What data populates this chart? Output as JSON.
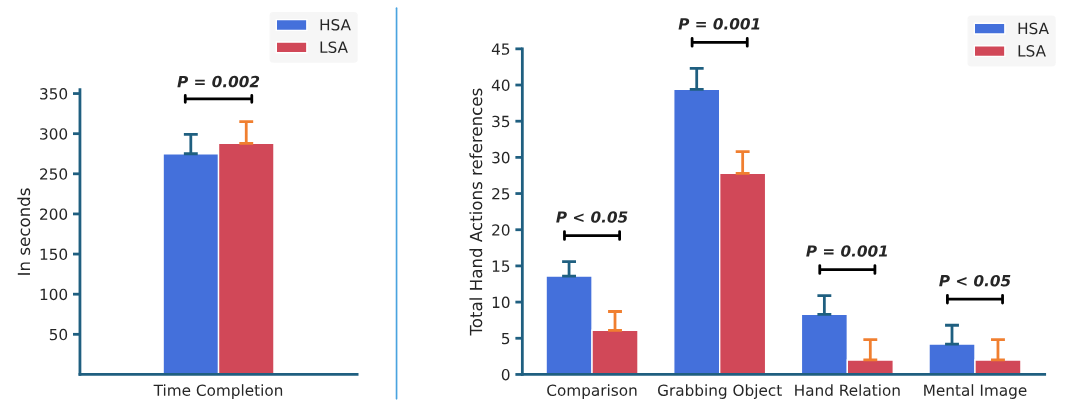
{
  "chart_data": [
    {
      "type": "bar",
      "ylabel": "In seconds",
      "categories": [
        "Time Completion"
      ],
      "ylim": [
        0,
        355
      ],
      "yticks": [
        50,
        100,
        150,
        200,
        250,
        300,
        350
      ],
      "grid": false,
      "legend": "top right",
      "series": [
        {
          "name": "HSA",
          "color": "#4470db",
          "values": [
            275
          ],
          "errors": [
            [
              275,
              299
            ]
          ]
        },
        {
          "name": "LSA",
          "color": "#d14858",
          "values": [
            288
          ],
          "errors": [
            [
              288,
              315
            ]
          ]
        }
      ],
      "annotations": [
        "P = 0.002"
      ]
    },
    {
      "type": "bar",
      "ylabel": "Total Hand Actions references",
      "categories": [
        "Comparison",
        "Grabbing Object",
        "Hand Relation",
        "Mental Image"
      ],
      "ylim": [
        0,
        45
      ],
      "yticks": [
        0,
        5,
        10,
        15,
        20,
        25,
        30,
        35,
        40,
        45
      ],
      "grid": false,
      "legend": "top right",
      "series": [
        {
          "name": "HSA",
          "color": "#4470db",
          "values": [
            13.6,
            39.4,
            8.3,
            4.2
          ],
          "errors": [
            [
              13.6,
              15.6
            ],
            [
              39.4,
              42.3
            ],
            [
              8.3,
              10.9
            ],
            [
              4.2,
              6.8
            ]
          ]
        },
        {
          "name": "LSA",
          "color": "#d14858",
          "values": [
            6.1,
            27.8,
            2.0,
            2.0
          ],
          "errors": [
            [
              6.1,
              8.7
            ],
            [
              27.8,
              30.8
            ],
            [
              2.0,
              4.8
            ],
            [
              2.0,
              4.8
            ]
          ]
        }
      ],
      "annotations": [
        "P < 0.05",
        "P = 0.001",
        "P = 0.001",
        "P < 0.05"
      ]
    }
  ]
}
